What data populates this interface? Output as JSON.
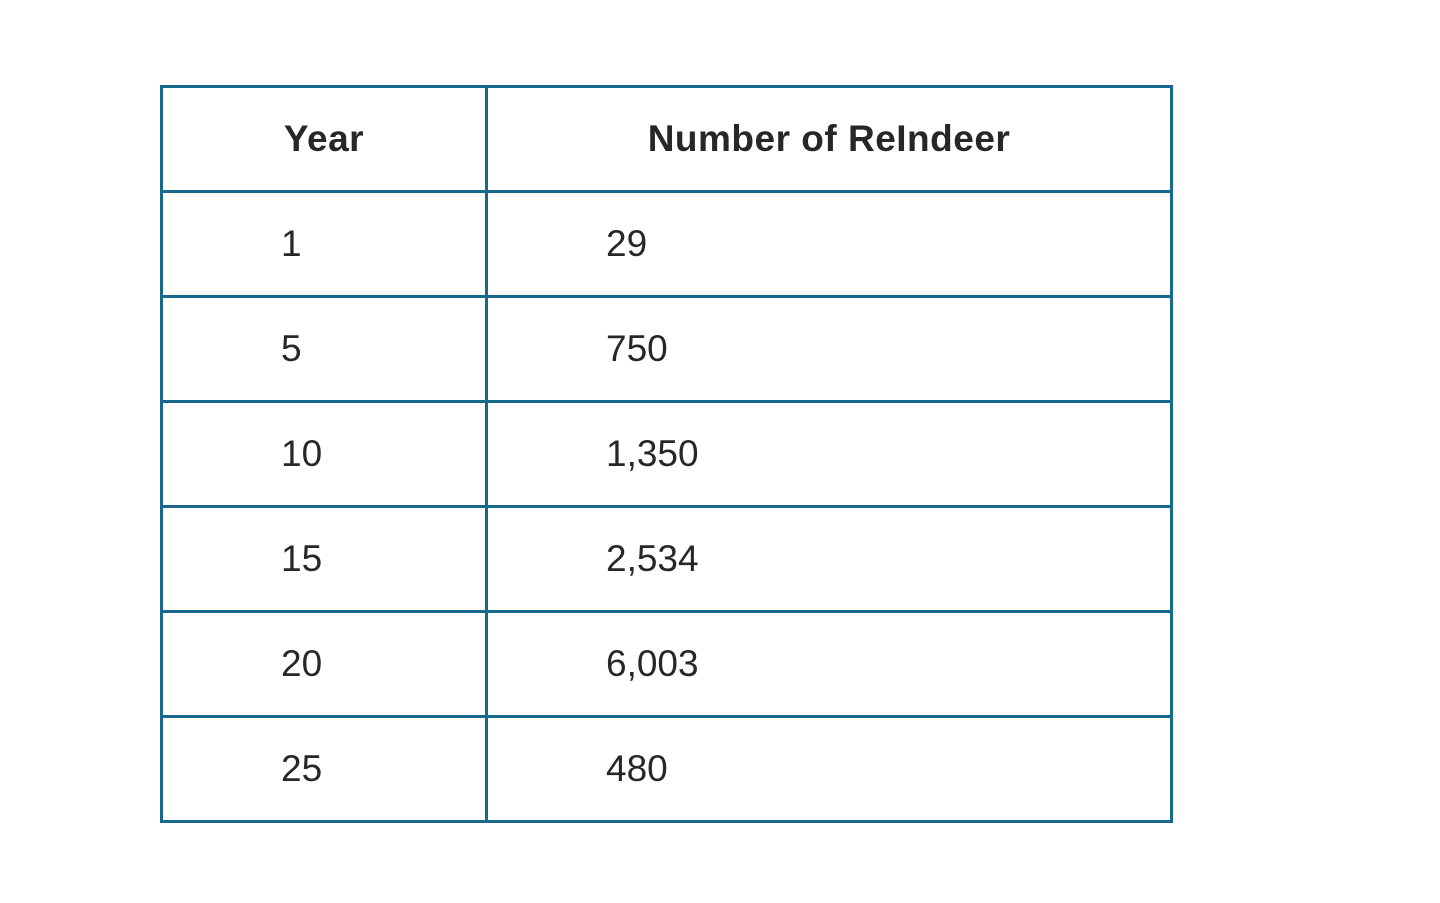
{
  "table": {
    "headers": [
      "Year",
      "Number of ReIndeer"
    ],
    "rows": [
      [
        "1",
        "29"
      ],
      [
        "5",
        "750"
      ],
      [
        "10",
        "1,350"
      ],
      [
        "15",
        "2,534"
      ],
      [
        "20",
        "6,003"
      ],
      [
        "25",
        "480"
      ]
    ],
    "border_color": "#176a8e"
  },
  "chart_data": {
    "type": "table",
    "title": "",
    "columns": [
      "Year",
      "Number of ReIndeer"
    ],
    "rows": [
      [
        1,
        29
      ],
      [
        5,
        750
      ],
      [
        10,
        1350
      ],
      [
        15,
        2534
      ],
      [
        20,
        6003
      ],
      [
        25,
        480
      ]
    ],
    "layout_hints": {
      "header_bold": true,
      "header_align": "center",
      "cell_align": "left",
      "grid": "all-borders"
    }
  }
}
